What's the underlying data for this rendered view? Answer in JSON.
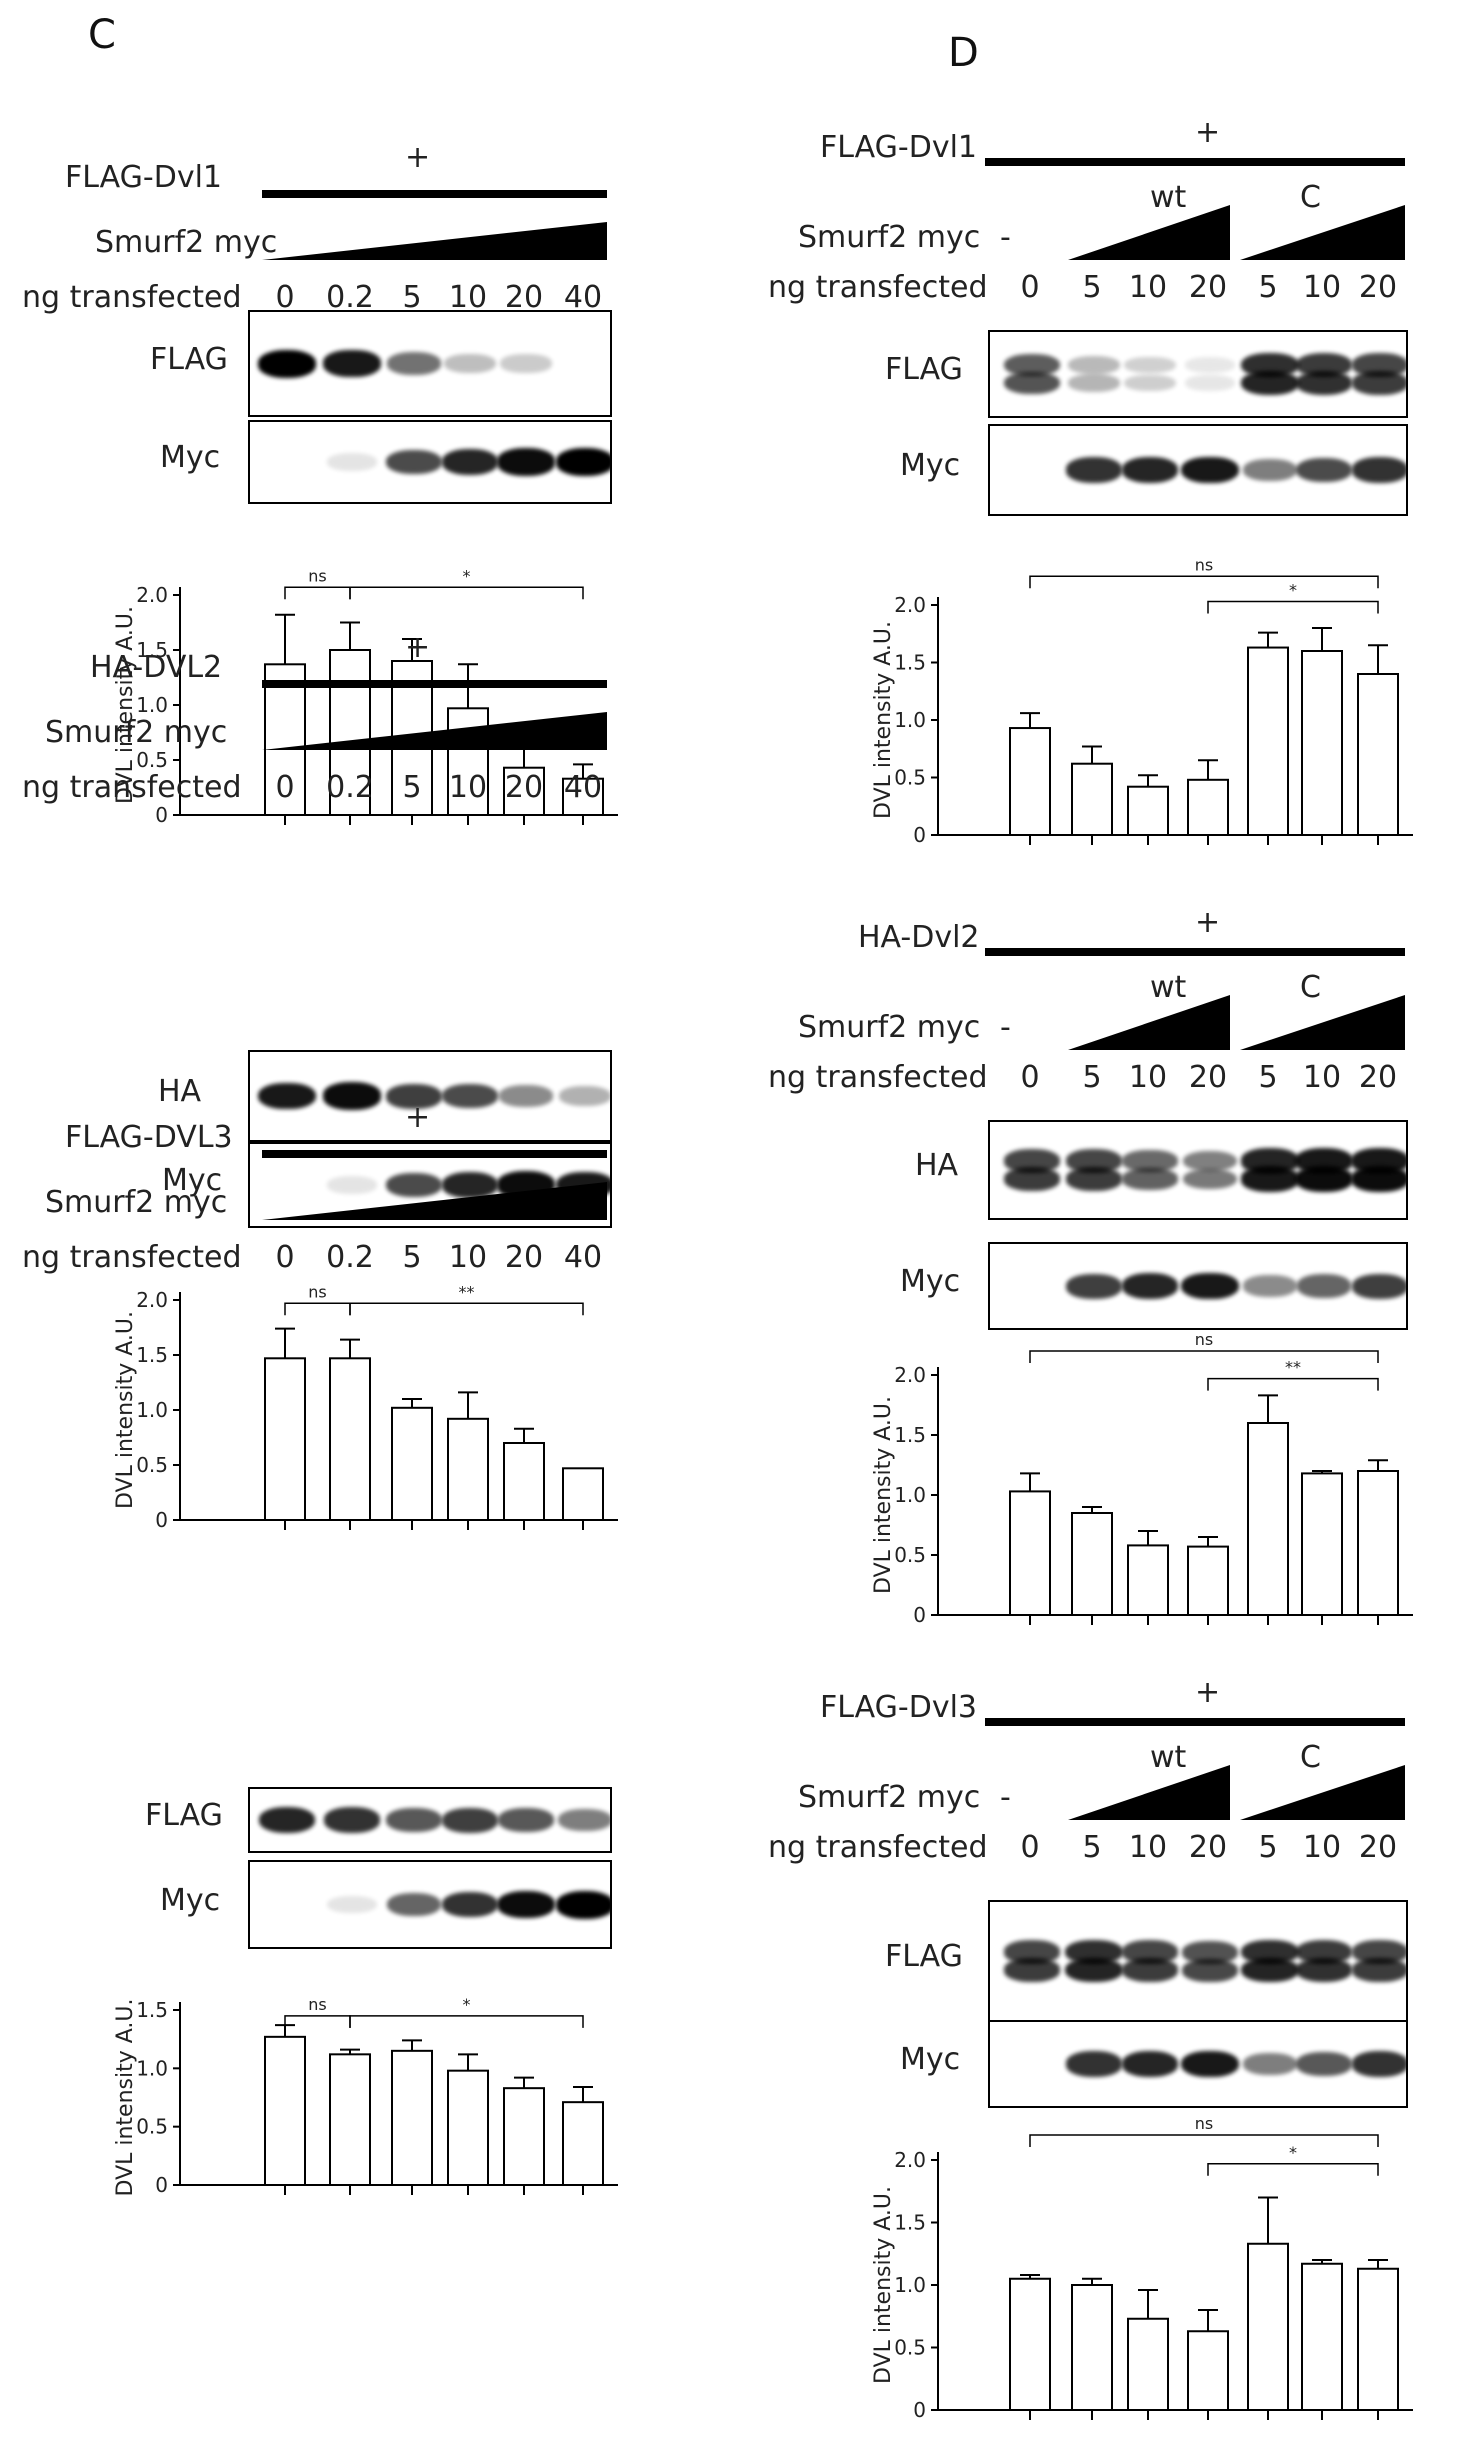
{
  "panels": {
    "C": {
      "letter": "C",
      "sections": [
        {
          "construct": "FLAG-Dvl1",
          "plus": "+",
          "e3_label": "Smurf2 myc",
          "ng_label": "ng transfected",
          "lanes": [
            "0",
            "0.2",
            "5",
            "10",
            "20",
            "40"
          ],
          "blots": [
            {
              "label": "FLAG",
              "intensities": [
                1.0,
                0.9,
                0.55,
                0.25,
                0.2,
                0.0
              ]
            },
            {
              "label": "Myc",
              "intensities": [
                0.0,
                0.1,
                0.7,
                0.85,
                0.95,
                1.0
              ]
            }
          ]
        },
        {
          "construct": "HA-DVL2",
          "plus": "+",
          "e3_label": "Smurf2 myc",
          "ng_label": "ng transfected",
          "lanes": [
            "0",
            "0.2",
            "5",
            "10",
            "20",
            "40"
          ],
          "blots": [
            {
              "label": "HA",
              "intensities": [
                0.9,
                0.95,
                0.75,
                0.7,
                0.45,
                0.3
              ]
            },
            {
              "label": "Myc",
              "intensities": [
                0.0,
                0.1,
                0.7,
                0.85,
                0.95,
                0.9
              ]
            }
          ]
        },
        {
          "construct": "FLAG-DVL3",
          "plus": "+",
          "e3_label": "Smurf2 myc",
          "ng_label": "ng transfected",
          "lanes": [
            "0",
            "0.2",
            "5",
            "10",
            "20",
            "40"
          ],
          "blots": [
            {
              "label": "FLAG",
              "intensities": [
                0.85,
                0.8,
                0.65,
                0.75,
                0.65,
                0.5
              ]
            },
            {
              "label": "Myc",
              "intensities": [
                0.0,
                0.1,
                0.6,
                0.8,
                0.95,
                1.0
              ]
            }
          ]
        }
      ]
    },
    "D": {
      "letter": "D",
      "sections": [
        {
          "construct": "FLAG-Dvl1",
          "plus": "+",
          "group_wt": "wt",
          "group_c": "C",
          "dash": "-",
          "e3_label": "Smurf2 myc",
          "ng_label": "ng transfected",
          "lanes": [
            "0",
            "5",
            "10",
            "20",
            "5",
            "10",
            "20"
          ],
          "blots": [
            {
              "label": "FLAG",
              "intensities": [
                0.7,
                0.3,
                0.2,
                0.1,
                0.9,
                0.85,
                0.8
              ]
            },
            {
              "label": "Myc",
              "intensities": [
                0.0,
                0.8,
                0.85,
                0.9,
                0.5,
                0.7,
                0.8
              ]
            }
          ]
        },
        {
          "construct": "HA-Dvl2",
          "plus": "+",
          "group_wt": "wt",
          "group_c": "C",
          "dash": "-",
          "e3_label": "Smurf2 myc",
          "ng_label": "ng transfected",
          "lanes": [
            "0",
            "5",
            "10",
            "20",
            "5",
            "10",
            "20"
          ],
          "blots": [
            {
              "label": "HA",
              "intensities": [
                0.8,
                0.8,
                0.65,
                0.55,
                0.95,
                1.0,
                1.0
              ]
            },
            {
              "label": "Myc",
              "intensities": [
                0.0,
                0.75,
                0.85,
                0.9,
                0.45,
                0.6,
                0.75
              ]
            }
          ]
        },
        {
          "construct": "FLAG-Dvl3",
          "plus": "+",
          "group_wt": "wt",
          "group_c": "C",
          "dash": "-",
          "e3_label": "Smurf2 myc",
          "ng_label": "ng transfected",
          "lanes": [
            "0",
            "5",
            "10",
            "20",
            "5",
            "10",
            "20"
          ],
          "blots": [
            {
              "label": "FLAG",
              "intensities": [
                0.8,
                0.9,
                0.8,
                0.75,
                0.9,
                0.85,
                0.8
              ]
            },
            {
              "label": "Myc",
              "intensities": [
                0.0,
                0.8,
                0.85,
                0.9,
                0.5,
                0.65,
                0.8
              ]
            }
          ]
        }
      ]
    }
  },
  "chart_data": [
    {
      "id": "C1",
      "type": "bar",
      "ylabel": "DVL intensity A.U.",
      "ylim": [
        0,
        2.0
      ],
      "yticks": [
        "0",
        "0.5",
        "1.0",
        "1.5",
        "2.0"
      ],
      "values": [
        1.37,
        1.5,
        1.4,
        0.97,
        0.43,
        0.33
      ],
      "errors": [
        0.45,
        0.25,
        0.2,
        0.4,
        0.25,
        0.13
      ],
      "brackets": [
        {
          "from": 0,
          "to": 1,
          "label": "ns",
          "level": 2.07
        },
        {
          "from": 1,
          "to": 5,
          "label": "*",
          "level": 2.07
        }
      ]
    },
    {
      "id": "C2",
      "type": "bar",
      "ylabel": "DVL intensity A.U.",
      "ylim": [
        0,
        2.0
      ],
      "yticks": [
        "0",
        "0.5",
        "1.0",
        "1.5",
        "2.0"
      ],
      "values": [
        1.47,
        1.47,
        1.02,
        0.92,
        0.7,
        0.47
      ],
      "errors": [
        0.27,
        0.17,
        0.08,
        0.24,
        0.13,
        0.0
      ],
      "brackets": [
        {
          "from": 0,
          "to": 1,
          "label": "ns",
          "level": 1.97
        },
        {
          "from": 1,
          "to": 5,
          "label": "**",
          "level": 1.97
        }
      ]
    },
    {
      "id": "C3",
      "type": "bar",
      "ylabel": "DVL intensity A.U.",
      "ylim": [
        0,
        1.5
      ],
      "yticks": [
        "0",
        "0.5",
        "1.0",
        "1.5"
      ],
      "values": [
        1.27,
        1.12,
        1.15,
        0.98,
        0.83,
        0.71
      ],
      "errors": [
        0.1,
        0.04,
        0.09,
        0.14,
        0.09,
        0.13
      ],
      "brackets": [
        {
          "from": 0,
          "to": 1,
          "label": "ns",
          "level": 1.45
        },
        {
          "from": 1,
          "to": 5,
          "label": "*",
          "level": 1.45
        }
      ]
    },
    {
      "id": "D1",
      "type": "bar",
      "ylabel": "DVL intensity A.U.",
      "ylim": [
        0,
        2.0
      ],
      "yticks": [
        "0",
        "0.5",
        "1.0",
        "1.5",
        "2.0"
      ],
      "values": [
        0.93,
        0.62,
        0.42,
        0.48,
        1.63,
        1.6,
        1.4
      ],
      "errors": [
        0.13,
        0.15,
        0.1,
        0.17,
        0.13,
        0.2,
        0.25
      ],
      "brackets": [
        {
          "from": 0,
          "to": 6,
          "label": "ns",
          "level": 2.25
        },
        {
          "from": 3,
          "to": 6,
          "label": "*",
          "level": 2.03
        }
      ]
    },
    {
      "id": "D2",
      "type": "bar",
      "ylabel": "DVL intensity A.U.",
      "ylim": [
        0,
        2.0
      ],
      "yticks": [
        "0",
        "0.5",
        "1.0",
        "1.5",
        "2.0"
      ],
      "values": [
        1.03,
        0.85,
        0.58,
        0.57,
        1.6,
        1.18,
        1.2
      ],
      "errors": [
        0.15,
        0.05,
        0.12,
        0.08,
        0.23,
        0.02,
        0.09
      ],
      "brackets": [
        {
          "from": 0,
          "to": 6,
          "label": "ns",
          "level": 2.2
        },
        {
          "from": 3,
          "to": 6,
          "label": "**",
          "level": 1.97
        }
      ]
    },
    {
      "id": "D3",
      "type": "bar",
      "ylabel": "DVL intensity A.U.",
      "ylim": [
        0,
        2.0
      ],
      "yticks": [
        "0",
        "0.5",
        "1.0",
        "1.5",
        "2.0"
      ],
      "values": [
        1.05,
        1.0,
        0.73,
        0.63,
        1.33,
        1.17,
        1.13
      ],
      "errors": [
        0.03,
        0.05,
        0.23,
        0.17,
        0.37,
        0.03,
        0.07
      ],
      "brackets": [
        {
          "from": 0,
          "to": 6,
          "label": "ns",
          "level": 2.2
        },
        {
          "from": 3,
          "to": 6,
          "label": "*",
          "level": 1.97
        }
      ]
    }
  ]
}
